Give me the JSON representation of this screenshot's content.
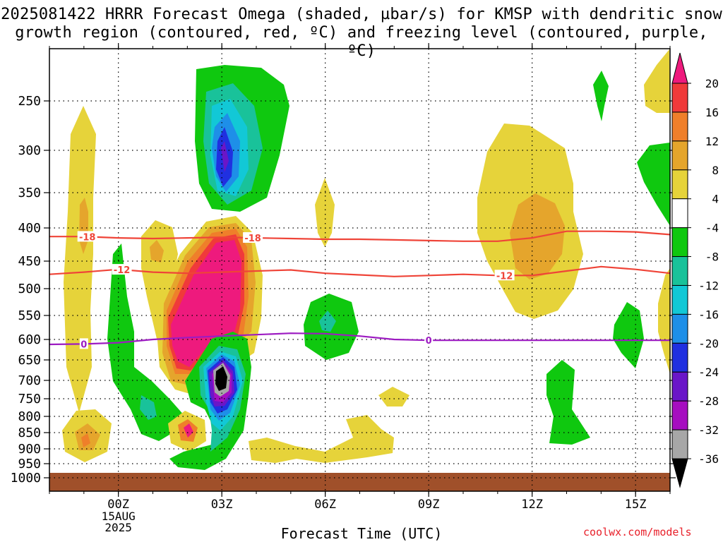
{
  "title_line1": "2025081422 HRRR Forecast Omega (shaded, µbar/s) for KMSP with dendritic snow",
  "title_line2": "growth region (contoured, red, ºC) and freezing level (contoured, purple, ºC)",
  "credit": "coolwx.com/models",
  "chart_data": {
    "type": "heatmap",
    "xlabel": "Forecast Time (UTC)",
    "x_ticks": [
      {
        "hour": 0,
        "label": "00Z",
        "sublabels": [
          "15AUG",
          "2025"
        ]
      },
      {
        "hour": 3,
        "label": "03Z",
        "sublabels": []
      },
      {
        "hour": 6,
        "label": "06Z",
        "sublabels": []
      },
      {
        "hour": 9,
        "label": "09Z",
        "sublabels": []
      },
      {
        "hour": 12,
        "label": "12Z",
        "sublabels": []
      },
      {
        "hour": 15,
        "label": "15Z",
        "sublabels": []
      }
    ],
    "x_range_hours": [
      -2,
      16
    ],
    "y_ticks_hpa": [
      250,
      300,
      350,
      400,
      450,
      500,
      550,
      600,
      650,
      700,
      750,
      800,
      850,
      900,
      950,
      1000
    ],
    "y_range_hpa": [
      200,
      1000
    ],
    "colorbar": {
      "labels": [
        "20",
        "16",
        "12",
        "8",
        "4",
        "-4",
        "-8",
        "-12",
        "-16",
        "-20",
        "-24",
        "-28",
        "-32",
        "-36"
      ],
      "colors": [
        "#ee1a7d",
        "#f03a3a",
        "#ef7f2a",
        "#e5a52c",
        "#e6d33a",
        "#ffffff",
        "#0fc80f",
        "#19c29a",
        "#12c8d6",
        "#1e8fe8",
        "#2030e0",
        "#6a16c8",
        "#a60ec0",
        "#a7a7a7",
        "#000000"
      ]
    },
    "contours": [
      {
        "value": -18,
        "label": "-18",
        "color": "#ef4438",
        "points": [
          [
            -2,
            413
          ],
          [
            -1,
            413
          ],
          [
            0,
            415
          ],
          [
            1,
            416
          ],
          [
            2,
            415
          ],
          [
            3,
            414
          ],
          [
            4,
            415
          ],
          [
            5,
            416
          ],
          [
            6,
            417
          ],
          [
            7,
            417
          ],
          [
            8,
            418
          ],
          [
            9,
            419
          ],
          [
            10,
            420
          ],
          [
            11,
            420
          ],
          [
            12,
            415
          ],
          [
            13,
            405
          ],
          [
            14,
            405
          ],
          [
            15,
            406
          ],
          [
            16,
            410
          ]
        ],
        "label_hours": [
          -0.9,
          3.9
        ]
      },
      {
        "value": -12,
        "label": "-12",
        "color": "#ef4438",
        "points": [
          [
            -2,
            474
          ],
          [
            -1,
            470
          ],
          [
            0,
            465
          ],
          [
            1,
            470
          ],
          [
            2,
            472
          ],
          [
            3,
            470
          ],
          [
            4,
            468
          ],
          [
            5,
            466
          ],
          [
            6,
            472
          ],
          [
            7,
            475
          ],
          [
            8,
            478
          ],
          [
            9,
            476
          ],
          [
            10,
            474
          ],
          [
            11,
            476
          ],
          [
            12,
            476
          ],
          [
            13,
            468
          ],
          [
            14,
            460
          ],
          [
            15,
            465
          ],
          [
            16,
            472
          ]
        ],
        "label_hours": [
          0.1,
          11.2
        ]
      },
      {
        "value": 0,
        "label": "0",
        "color": "#9d1bc2",
        "points": [
          [
            -2,
            612
          ],
          [
            -1,
            611
          ],
          [
            0,
            608
          ],
          [
            1,
            600
          ],
          [
            2,
            596
          ],
          [
            3,
            593
          ],
          [
            4,
            590
          ],
          [
            5,
            587
          ],
          [
            6,
            588
          ],
          [
            7,
            593
          ],
          [
            8,
            600
          ],
          [
            9,
            602
          ],
          [
            10,
            602
          ],
          [
            11,
            602
          ],
          [
            12,
            602
          ],
          [
            13,
            602
          ],
          [
            14,
            602
          ],
          [
            15,
            602
          ],
          [
            16,
            602
          ]
        ],
        "label_hours": [
          -1.0,
          9.0
        ]
      }
    ]
  }
}
